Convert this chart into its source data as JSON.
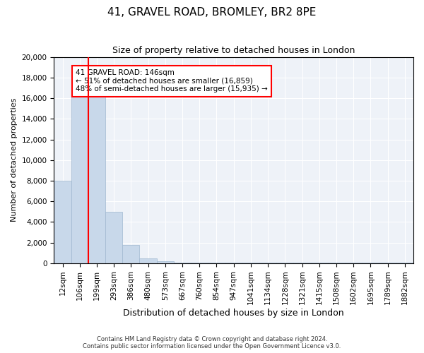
{
  "title": "41, GRAVEL ROAD, BROMLEY, BR2 8PE",
  "subtitle": "Size of property relative to detached houses in London",
  "xlabel": "Distribution of detached houses by size in London",
  "ylabel": "Number of detached properties",
  "bar_values": [
    8000,
    16500,
    16500,
    5000,
    1800,
    500,
    200,
    100,
    75,
    75,
    50,
    50,
    50,
    50,
    50,
    50,
    50,
    50,
    50,
    50,
    50
  ],
  "categories": [
    "12sqm",
    "106sqm",
    "199sqm",
    "293sqm",
    "386sqm",
    "480sqm",
    "573sqm",
    "667sqm",
    "760sqm",
    "854sqm",
    "947sqm",
    "1041sqm",
    "1134sqm",
    "1228sqm",
    "1321sqm",
    "1415sqm",
    "1508sqm",
    "1602sqm",
    "1695sqm",
    "1789sqm",
    "1882sqm"
  ],
  "bar_color": "#c8d8ea",
  "bar_edge_color": "#a0b8d0",
  "red_line_x": 1.5,
  "annotation_text": "41 GRAVEL ROAD: 146sqm\n← 51% of detached houses are smaller (16,859)\n48% of semi-detached houses are larger (15,935) →",
  "annotation_box_color": "white",
  "annotation_border_color": "red",
  "background_color": "#eef2f8",
  "grid_color": "white",
  "footer1": "Contains HM Land Registry data © Crown copyright and database right 2024.",
  "footer2": "Contains public sector information licensed under the Open Government Licence v3.0.",
  "ylim": [
    0,
    20000
  ],
  "yticks": [
    0,
    2000,
    4000,
    6000,
    8000,
    10000,
    12000,
    14000,
    16000,
    18000,
    20000
  ]
}
